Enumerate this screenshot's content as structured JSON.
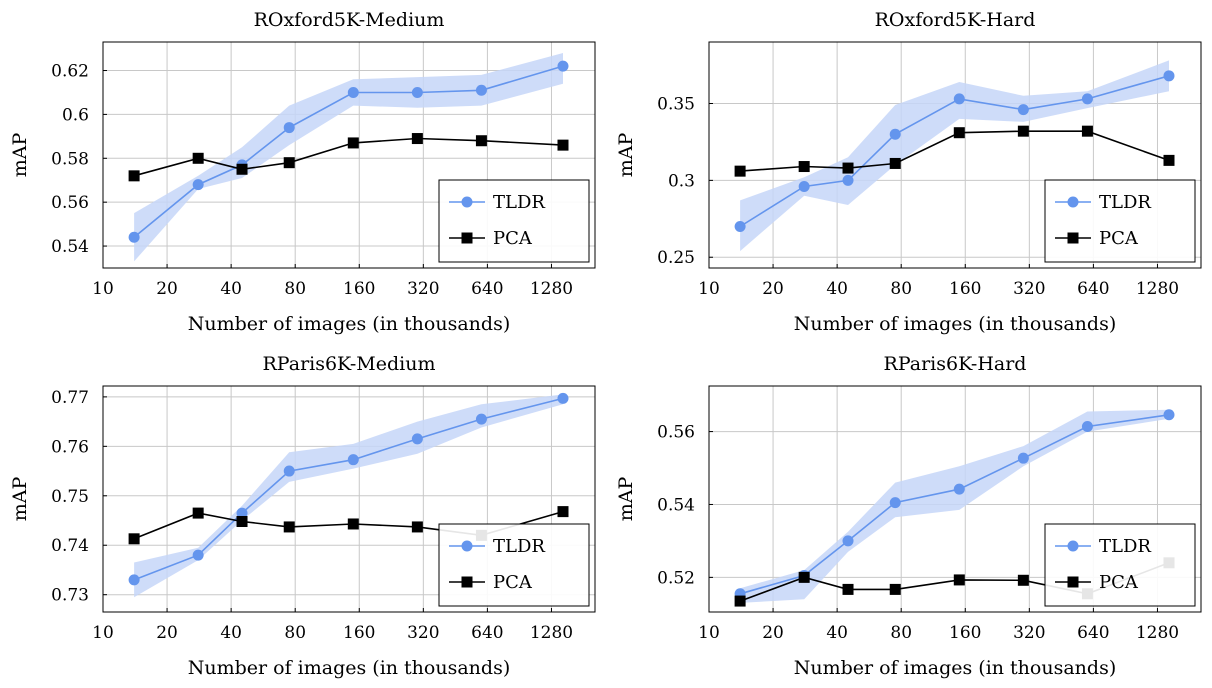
{
  "colors": {
    "tldr": "#6495ed",
    "tldr_band": "#c5d6f8",
    "pca": "#000000",
    "grid": "#c8c8c8"
  },
  "chart_data": [
    {
      "type": "line",
      "title": "ROxford5K-Medium",
      "xlabel": "Number of images (in thousands)",
      "ylabel": "mAP",
      "x_scale": "log",
      "xticks": [
        10,
        20,
        40,
        80,
        160,
        320,
        640,
        1280
      ],
      "xlim": [
        10,
        2050
      ],
      "yticks": [
        0.54,
        0.56,
        0.58,
        0.6,
        0.62
      ],
      "ytick_labels": [
        "0.54",
        "0.56",
        "0.58",
        "0.6",
        "0.62"
      ],
      "ylim": [
        0.53,
        0.633
      ],
      "legend_position": "bottom-right",
      "grid": true,
      "x": [
        14,
        28,
        45,
        75,
        150,
        300,
        600,
        1450
      ],
      "series": [
        {
          "name": "TLDR",
          "marker": "circle",
          "values": [
            0.544,
            0.568,
            0.577,
            0.594,
            0.61,
            0.61,
            0.611,
            0.622
          ],
          "band_low": [
            0.533,
            0.566,
            0.571,
            0.586,
            0.604,
            0.603,
            0.604,
            0.614
          ],
          "band_high": [
            0.555,
            0.572,
            0.585,
            0.604,
            0.616,
            0.617,
            0.618,
            0.628
          ]
        },
        {
          "name": "PCA",
          "marker": "square",
          "values": [
            0.572,
            0.58,
            0.575,
            0.578,
            0.587,
            0.589,
            0.588,
            0.586
          ]
        }
      ]
    },
    {
      "type": "line",
      "title": "ROxford5K-Hard",
      "xlabel": "Number of images (in thousands)",
      "ylabel": "mAP",
      "x_scale": "log",
      "xticks": [
        10,
        20,
        40,
        80,
        160,
        320,
        640,
        1280
      ],
      "xlim": [
        10,
        2050
      ],
      "yticks": [
        0.25,
        0.3,
        0.35
      ],
      "ytick_labels": [
        "0.25",
        "0.3",
        "0.35"
      ],
      "ylim": [
        0.243,
        0.39
      ],
      "legend_position": "bottom-right",
      "grid": true,
      "x": [
        14,
        28,
        45,
        75,
        150,
        300,
        600,
        1450
      ],
      "series": [
        {
          "name": "TLDR",
          "marker": "circle",
          "values": [
            0.27,
            0.296,
            0.3,
            0.33,
            0.353,
            0.346,
            0.353,
            0.368
          ],
          "band_low": [
            0.254,
            0.29,
            0.284,
            0.31,
            0.34,
            0.338,
            0.347,
            0.358
          ],
          "band_high": [
            0.287,
            0.302,
            0.315,
            0.349,
            0.364,
            0.355,
            0.358,
            0.378
          ]
        },
        {
          "name": "PCA",
          "marker": "square",
          "values": [
            0.306,
            0.309,
            0.308,
            0.311,
            0.331,
            0.332,
            0.332,
            0.313
          ]
        }
      ]
    },
    {
      "type": "line",
      "title": "RParis6K-Medium",
      "xlabel": "Number of images (in thousands)",
      "ylabel": "mAP",
      "x_scale": "log",
      "xticks": [
        10,
        20,
        40,
        80,
        160,
        320,
        640,
        1280
      ],
      "xlim": [
        10,
        2050
      ],
      "yticks": [
        0.73,
        0.74,
        0.75,
        0.76,
        0.77
      ],
      "ytick_labels": [
        "0.73",
        "0.74",
        "0.75",
        "0.76",
        "0.77"
      ],
      "ylim": [
        0.7265,
        0.7722
      ],
      "legend_position": "bottom-right",
      "grid": true,
      "x": [
        14,
        28,
        45,
        75,
        150,
        300,
        600,
        1450
      ],
      "series": [
        {
          "name": "TLDR",
          "marker": "circle",
          "values": [
            0.733,
            0.738,
            0.7465,
            0.755,
            0.7573,
            0.7615,
            0.7655,
            0.7697
          ],
          "band_low": [
            0.7295,
            0.737,
            0.745,
            0.7528,
            0.7555,
            0.7585,
            0.7638,
            0.7685
          ],
          "band_high": [
            0.7365,
            0.7395,
            0.748,
            0.7588,
            0.7605,
            0.765,
            0.7685,
            0.7705
          ]
        },
        {
          "name": "PCA",
          "marker": "square",
          "values": [
            0.7413,
            0.7465,
            0.7448,
            0.7437,
            0.7443,
            0.7437,
            0.742,
            0.7468
          ]
        }
      ]
    },
    {
      "type": "line",
      "title": "RParis6K-Hard",
      "xlabel": "Number of images (in thousands)",
      "ylabel": "mAP",
      "x_scale": "log",
      "xticks": [
        10,
        20,
        40,
        80,
        160,
        320,
        640,
        1280
      ],
      "xlim": [
        10,
        2050
      ],
      "yticks": [
        0.52,
        0.54,
        0.56
      ],
      "ytick_labels": [
        "0.52",
        "0.54",
        "0.56"
      ],
      "ylim": [
        0.5105,
        0.5725
      ],
      "legend_position": "bottom-right",
      "grid": true,
      "x": [
        14,
        28,
        45,
        75,
        150,
        300,
        600,
        1450
      ],
      "series": [
        {
          "name": "TLDR",
          "marker": "circle",
          "values": [
            0.5155,
            0.5205,
            0.53,
            0.5405,
            0.5442,
            0.5527,
            0.5614,
            0.5646
          ],
          "band_low": [
            0.513,
            0.514,
            0.527,
            0.5365,
            0.5385,
            0.5505,
            0.56,
            0.5635
          ],
          "band_high": [
            0.517,
            0.522,
            0.5325,
            0.546,
            0.5505,
            0.556,
            0.5655,
            0.566
          ]
        },
        {
          "name": "PCA",
          "marker": "square",
          "values": [
            0.5135,
            0.52,
            0.5167,
            0.5167,
            0.5193,
            0.5192,
            0.5155,
            0.524
          ]
        }
      ]
    }
  ]
}
